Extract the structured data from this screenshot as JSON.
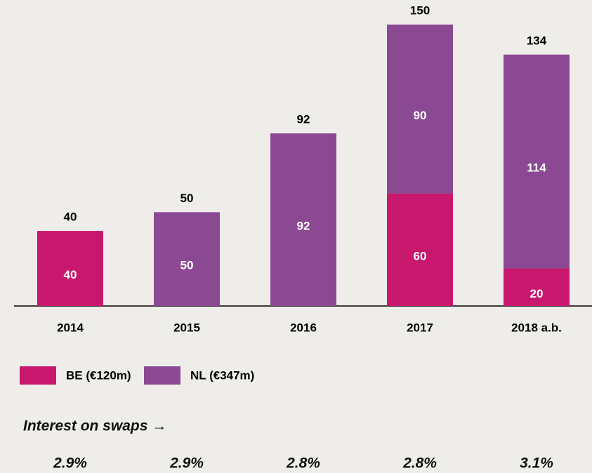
{
  "chart_data": {
    "type": "stacked_bar",
    "categories": [
      "2014",
      "2015",
      "2016",
      "2017",
      "2018 a.b."
    ],
    "series": [
      {
        "name": "BE (€120m)",
        "color": "#c7186e",
        "values": [
          40,
          null,
          null,
          60,
          20
        ]
      },
      {
        "name": "NL (€347m)",
        "color": "#8b4993",
        "values": [
          null,
          50,
          92,
          90,
          114
        ]
      }
    ],
    "totals": [
      40,
      50,
      92,
      150,
      134
    ],
    "ylim": [
      0,
      150
    ],
    "interest": {
      "label": "Interest on swaps →",
      "values": [
        2.9,
        2.9,
        2.8,
        2.8,
        3.1
      ],
      "value_labels": [
        "2.9%",
        "2.9%",
        "2.8%",
        "2.8%",
        "3.1%"
      ]
    }
  }
}
